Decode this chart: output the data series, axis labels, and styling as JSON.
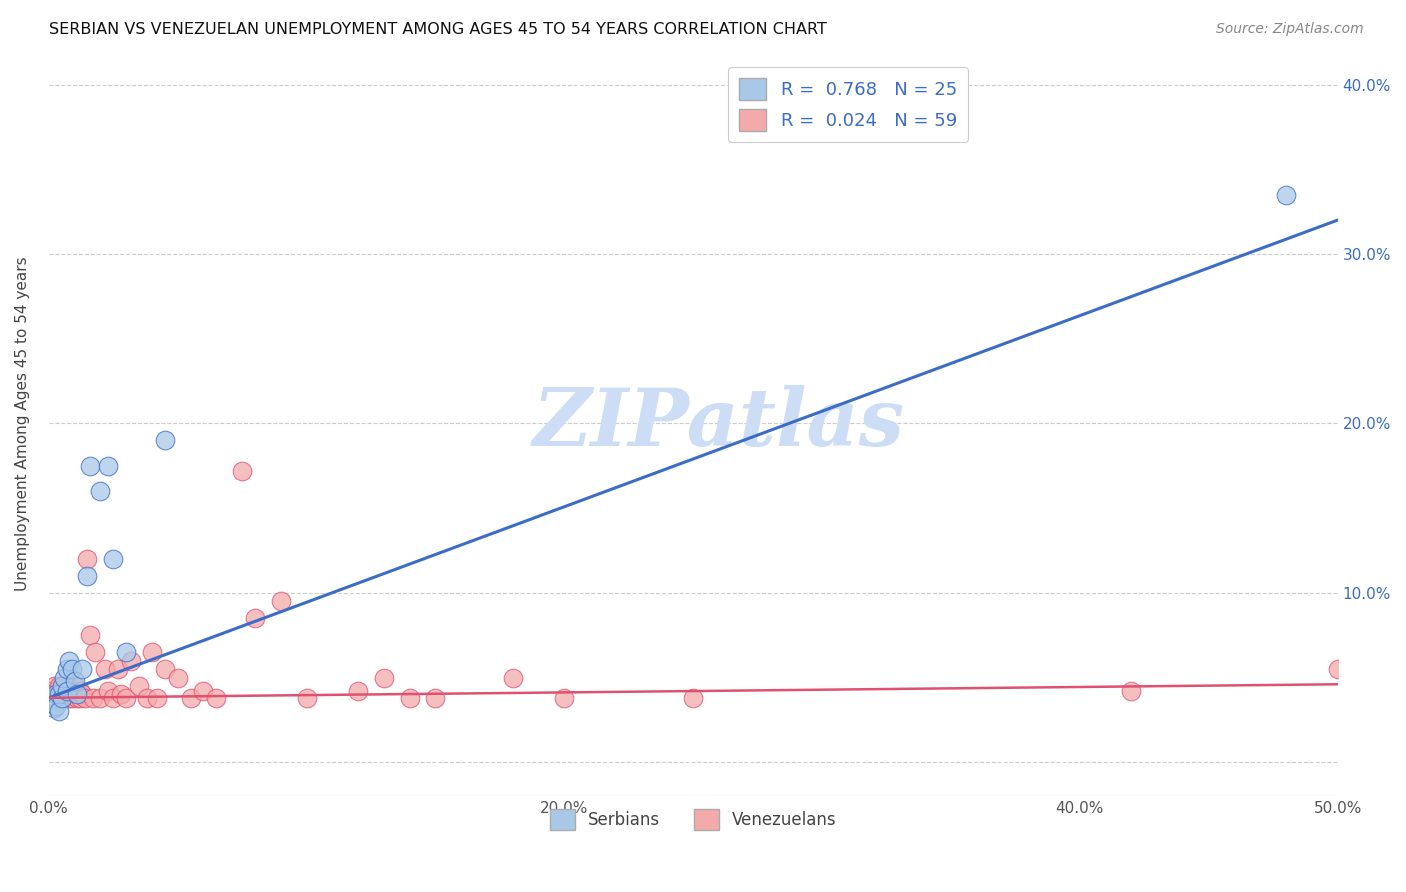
{
  "title": "SERBIAN VS VENEZUELAN UNEMPLOYMENT AMONG AGES 45 TO 54 YEARS CORRELATION CHART",
  "source": "Source: ZipAtlas.com",
  "ylabel": "Unemployment Among Ages 45 to 54 years",
  "xlim": [
    0.0,
    0.5
  ],
  "ylim": [
    -0.02,
    0.42
  ],
  "xticks": [
    0.0,
    0.1,
    0.2,
    0.3,
    0.4,
    0.5
  ],
  "xticklabels": [
    "0.0%",
    "",
    "20.0%",
    "",
    "40.0%",
    "50.0%"
  ],
  "yticks": [
    0.0,
    0.1,
    0.2,
    0.3,
    0.4
  ],
  "right_yticklabels": [
    "",
    "10.0%",
    "20.0%",
    "30.0%",
    "40.0%"
  ],
  "serbian_color": "#a8c8e8",
  "venezuelan_color": "#f4aaaa",
  "serbian_R": 0.768,
  "serbian_N": 25,
  "venezuelan_R": 0.024,
  "venezuelan_N": 59,
  "serbian_line_color": "#3b6cc7",
  "venezuelan_line_color": "#e05070",
  "legend_label_serbian": "Serbians",
  "legend_label_venezuelan": "Venezuelans",
  "watermark": "ZIPatlas",
  "watermark_color": "#ccddf5",
  "serbian_x": [
    0.001,
    0.002,
    0.002,
    0.003,
    0.003,
    0.004,
    0.004,
    0.005,
    0.005,
    0.006,
    0.007,
    0.007,
    0.008,
    0.009,
    0.01,
    0.011,
    0.013,
    0.015,
    0.016,
    0.02,
    0.023,
    0.025,
    0.03,
    0.045,
    0.48
  ],
  "serbian_y": [
    0.035,
    0.032,
    0.038,
    0.04,
    0.033,
    0.03,
    0.04,
    0.038,
    0.045,
    0.05,
    0.055,
    0.042,
    0.06,
    0.055,
    0.048,
    0.04,
    0.055,
    0.11,
    0.175,
    0.16,
    0.175,
    0.12,
    0.065,
    0.19,
    0.335
  ],
  "venezuelan_x": [
    0.001,
    0.001,
    0.002,
    0.002,
    0.003,
    0.003,
    0.004,
    0.004,
    0.005,
    0.005,
    0.006,
    0.006,
    0.007,
    0.007,
    0.008,
    0.008,
    0.009,
    0.009,
    0.01,
    0.01,
    0.011,
    0.012,
    0.012,
    0.013,
    0.014,
    0.015,
    0.016,
    0.017,
    0.018,
    0.02,
    0.022,
    0.023,
    0.025,
    0.027,
    0.028,
    0.03,
    0.032,
    0.035,
    0.038,
    0.04,
    0.042,
    0.045,
    0.05,
    0.055,
    0.06,
    0.065,
    0.075,
    0.08,
    0.09,
    0.1,
    0.12,
    0.13,
    0.14,
    0.15,
    0.18,
    0.2,
    0.25,
    0.42,
    0.5
  ],
  "venezuelan_y": [
    0.038,
    0.042,
    0.04,
    0.045,
    0.038,
    0.042,
    0.04,
    0.045,
    0.038,
    0.04,
    0.042,
    0.038,
    0.04,
    0.045,
    0.038,
    0.04,
    0.042,
    0.038,
    0.04,
    0.045,
    0.038,
    0.042,
    0.038,
    0.04,
    0.038,
    0.12,
    0.075,
    0.038,
    0.065,
    0.038,
    0.055,
    0.042,
    0.038,
    0.055,
    0.04,
    0.038,
    0.06,
    0.045,
    0.038,
    0.065,
    0.038,
    0.055,
    0.05,
    0.038,
    0.042,
    0.038,
    0.172,
    0.085,
    0.095,
    0.038,
    0.042,
    0.05,
    0.038,
    0.038,
    0.05,
    0.038,
    0.038,
    0.042,
    0.055
  ]
}
